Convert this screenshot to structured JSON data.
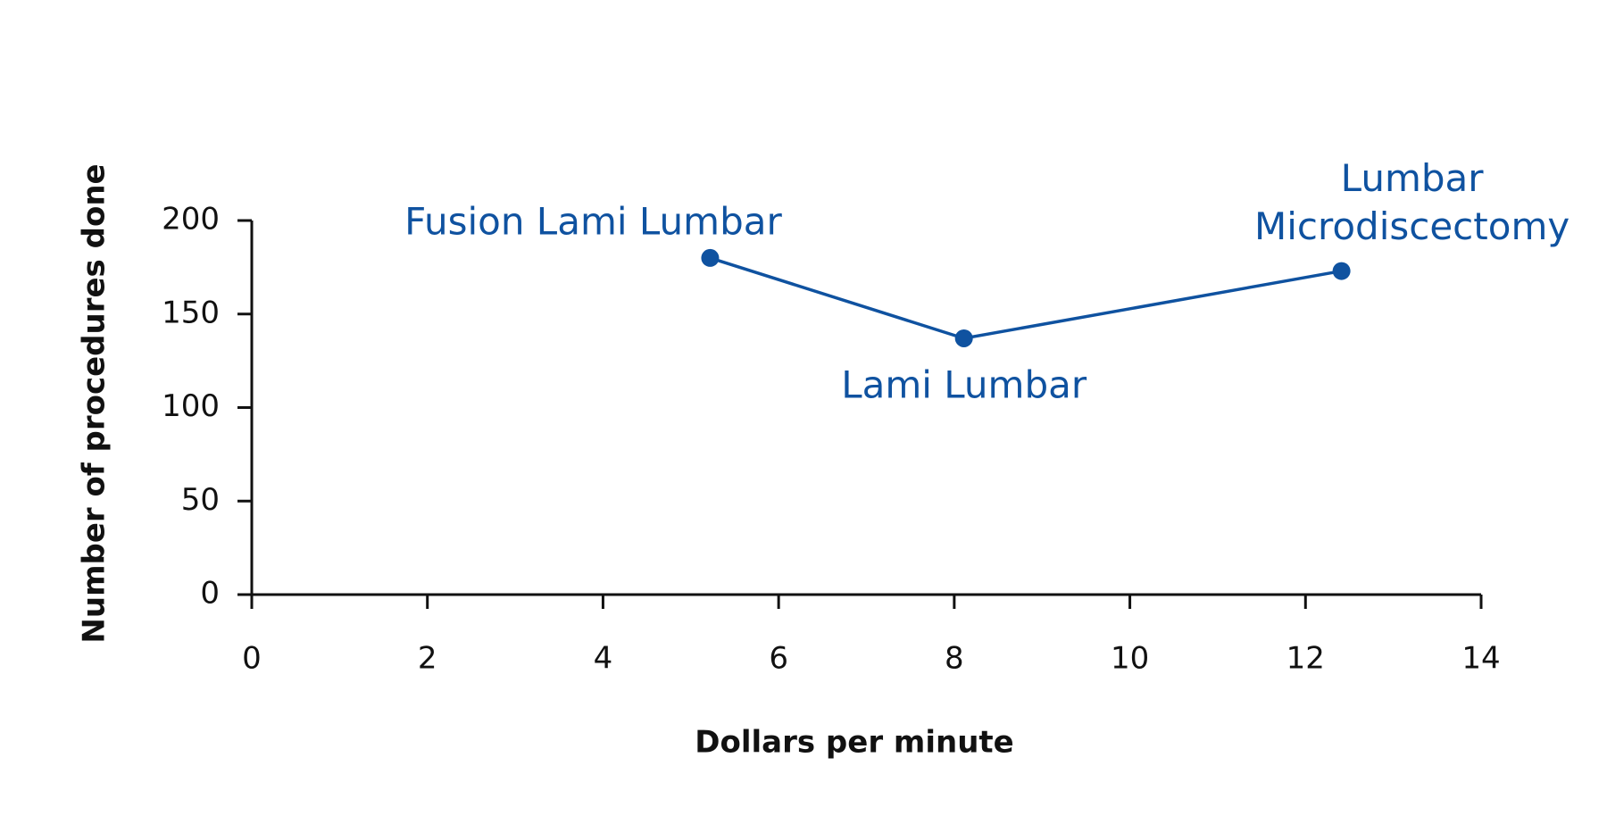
{
  "chart_data": {
    "type": "line",
    "x_label": "Dollars per minute",
    "y_label": "Number of procedures done",
    "x": [
      5.22,
      8.11,
      12.41
    ],
    "series": [
      {
        "color": "#0f52a0",
        "values": [
          180,
          137,
          173
        ]
      }
    ],
    "point_labels": [
      [
        "Fusion Lami Lumbar"
      ],
      [
        "Lami Lumbar"
      ],
      [
        "Lumbar",
        "Microdiscectomy"
      ]
    ],
    "xlim": [
      0,
      14
    ],
    "xticks": [
      0,
      2,
      4,
      6,
      8,
      10,
      12,
      14
    ],
    "ylim": [
      0,
      200
    ],
    "yticks": [
      0,
      50,
      100,
      150,
      200
    ],
    "grid": false
  }
}
